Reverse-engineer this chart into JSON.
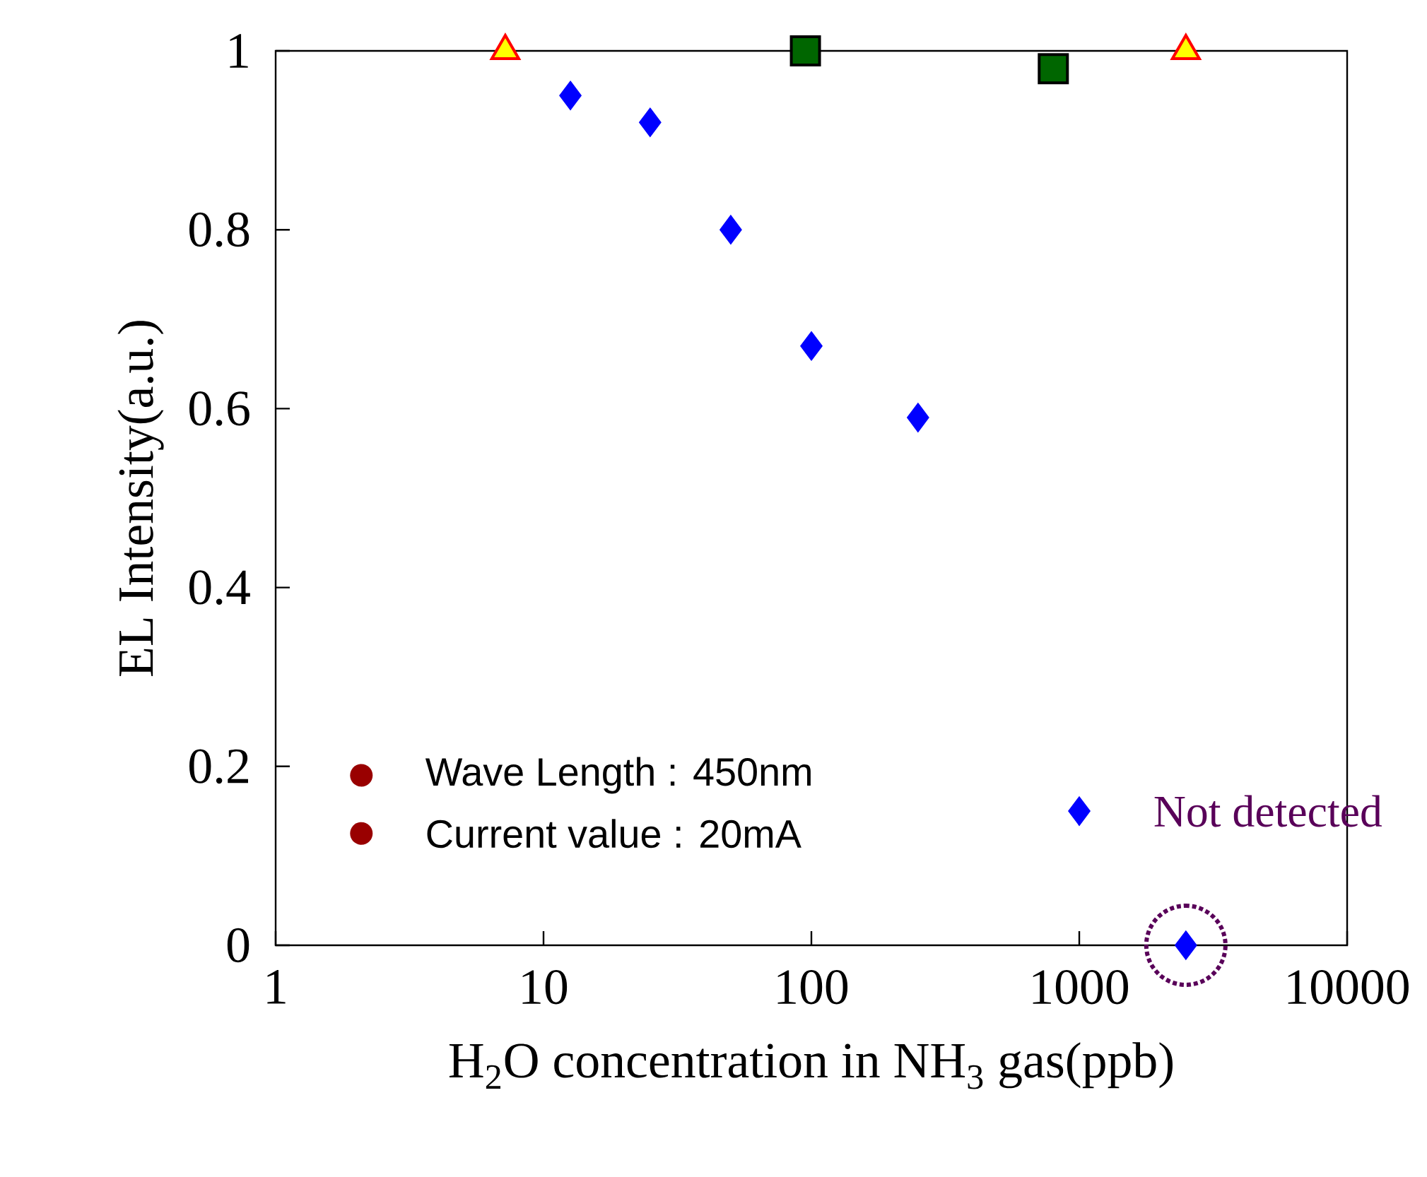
{
  "chart_data": {
    "type": "scatter",
    "xlabel": "H$_{2}$O concentration in NH$_{3}$ gas(ppb)",
    "ylabel": "EL Intensity(a.u.)",
    "log": "x",
    "xlim": [
      1,
      10000
    ],
    "xticks": [
      1,
      10,
      100,
      1000,
      10000
    ],
    "ylim": [
      0,
      1
    ],
    "yticks": [
      0,
      0.2,
      0.4,
      0.6,
      0.8,
      1
    ],
    "series": [
      {
        "color": "#0000ff",
        "marker": "diamond",
        "x": [
          12.6,
          25,
          50,
          100,
          250,
          1000,
          2500
        ],
        "values": [
          0.95,
          0.92,
          0.8,
          0.67,
          0.59,
          0.15,
          0
        ]
      },
      {
        "color": "#006600",
        "marker": "square",
        "x": [
          95,
          800
        ],
        "values": [
          1,
          0.98
        ]
      },
      {
        "color": "#ffff00",
        "marker": "triangle",
        "x": [
          7.2,
          2500
        ],
        "values": [
          1,
          1
        ]
      }
    ],
    "annotations": [
      "Wave Length : 450nm",
      "Current value : 20mA",
      {
        "text": "Not detected",
        "x": 2500,
        "y": 0
      }
    ]
  }
}
